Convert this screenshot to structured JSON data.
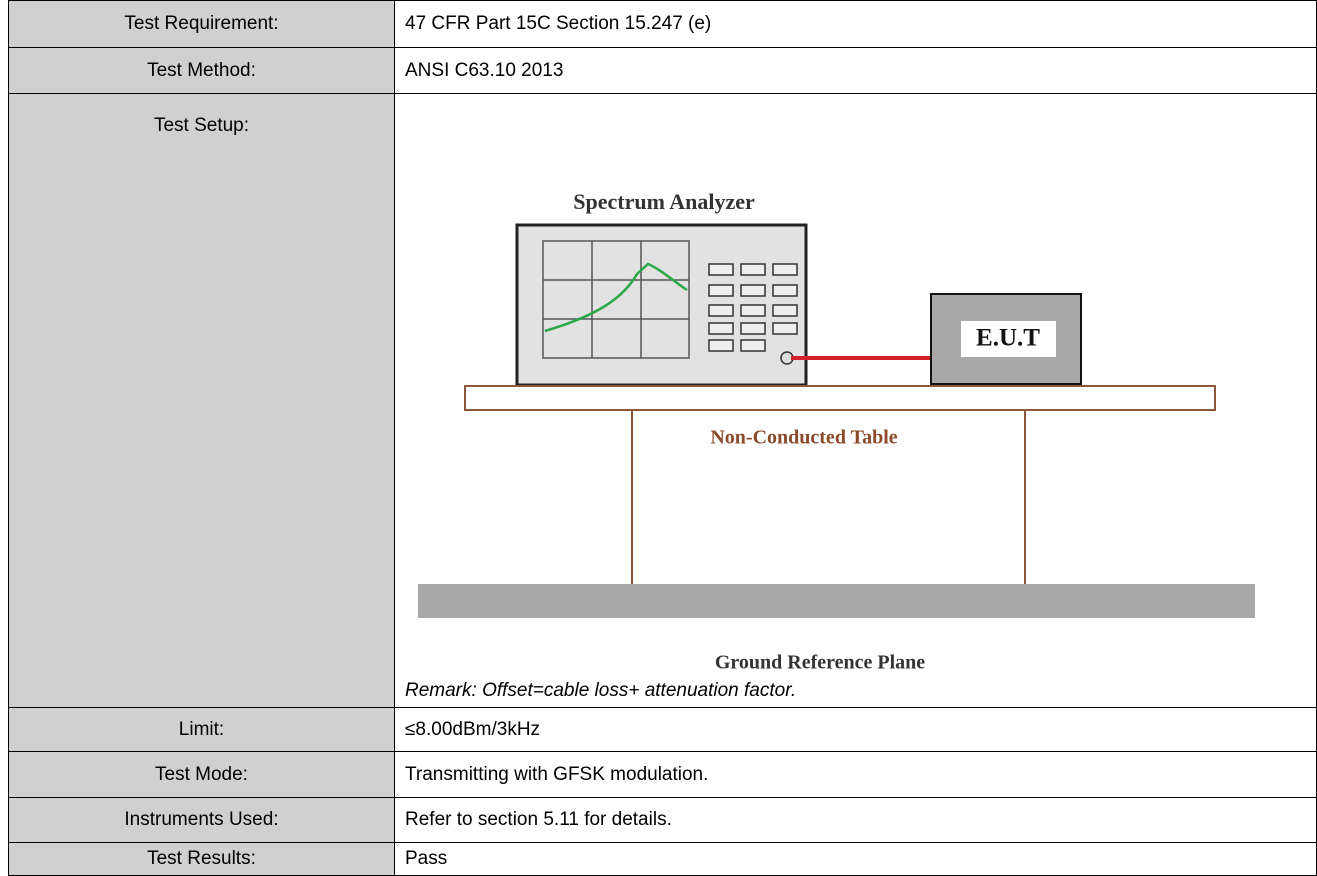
{
  "rows": [
    {
      "label": "Test Requirement:",
      "value": "47 CFR Part 15C Section 15.247 (e)"
    },
    {
      "label": "Test Method:",
      "value": "ANSI C63.10 2013"
    },
    {
      "label": "Test Setup:",
      "diagram": {
        "analyzer": "Spectrum Analyzer",
        "eut": "E.U.T",
        "table": "Non-Conducted Table",
        "ground": "Ground Reference Plane"
      },
      "remark": "Remark: Offset=cable loss+ attenuation factor."
    },
    {
      "label": "Limit:",
      "value": "≤8.00dBm/3kHz"
    },
    {
      "label": "Test Mode:",
      "value": "Transmitting with GFSK modulation."
    },
    {
      "label": "Instruments Used:",
      "value": "Refer to section 5.11 for details."
    },
    {
      "label": "Test Results:",
      "value": "Pass"
    }
  ]
}
